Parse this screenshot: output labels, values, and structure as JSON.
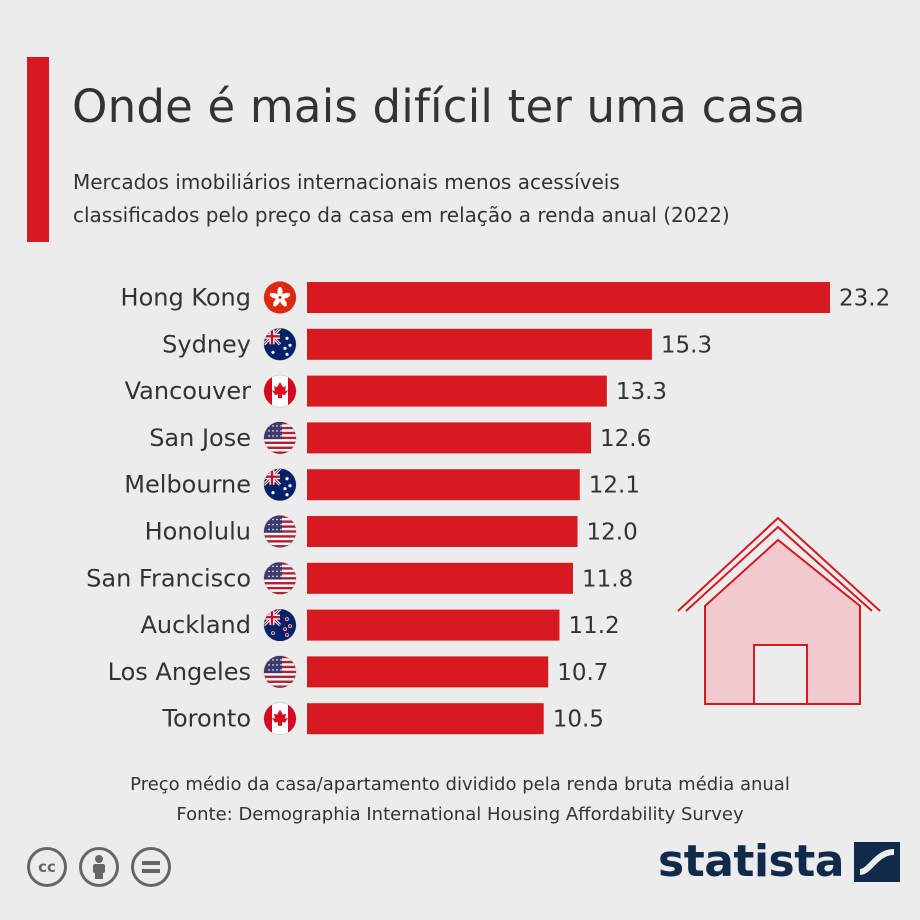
{
  "title": "Onde é mais difícil ter uma casa",
  "subtitle_lines": [
    "Mercados imobiliários internacionais menos acessíveis",
    "classificados pelo preço da casa em relação a renda anual (2022)"
  ],
  "footer": {
    "note": "Preço médio da casa/apartamento dividido pela renda bruta média anual",
    "source": "Fonte: Demographia International  Housing Affordability Survey"
  },
  "brand": "statista",
  "license_icons": [
    "cc-icon",
    "attribution-icon",
    "no-derivatives-icon"
  ],
  "colors": {
    "accent": "#d71920",
    "background": "#ececec",
    "text": "#333333",
    "brand": "#0f2a4a",
    "house_fill": "#f2c9cd",
    "house_stroke": "#d71920"
  },
  "chart_data": {
    "type": "bar",
    "orientation": "horizontal",
    "categories": [
      "Hong Kong",
      "Sydney",
      "Vancouver",
      "San Jose",
      "Melbourne",
      "Honolulu",
      "San Francisco",
      "Auckland",
      "Los Angeles",
      "Toronto"
    ],
    "values": [
      23.2,
      15.3,
      13.3,
      12.6,
      12.1,
      12.0,
      11.8,
      11.2,
      10.7,
      10.5
    ],
    "value_labels": [
      "23.2",
      "15.3",
      "13.3",
      "12.6",
      "12.1",
      "12.0",
      "11.8",
      "11.2",
      "10.7",
      "10.5"
    ],
    "flags": [
      "hong-kong",
      "australia",
      "canada",
      "usa",
      "australia",
      "usa",
      "usa",
      "new-zealand",
      "usa",
      "canada"
    ],
    "bar_color": "#d71920",
    "xlim": [
      0,
      23.2
    ],
    "grid": false,
    "legend": "none"
  }
}
